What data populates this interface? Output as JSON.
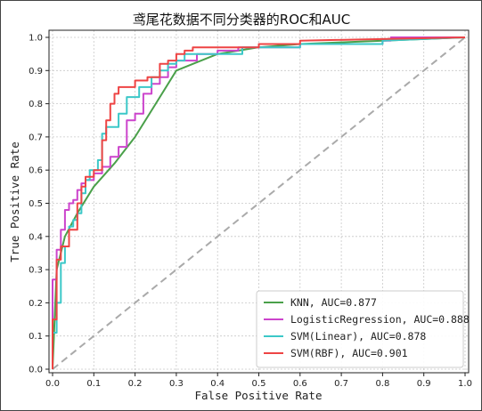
{
  "chart_data": {
    "type": "line",
    "title": "鸢尾花数据不同分类器的ROC和AUC",
    "xlabel": "False Positive Rate",
    "ylabel": "True Positive Rate",
    "xlim": [
      0,
      1
    ],
    "ylim": [
      0,
      1
    ],
    "xticks": [
      "0.0",
      "0.1",
      "0.2",
      "0.3",
      "0.4",
      "0.5",
      "0.6",
      "0.7",
      "0.8",
      "0.9",
      "1.0"
    ],
    "yticks": [
      "0.0",
      "0.1",
      "0.2",
      "0.3",
      "0.4",
      "0.5",
      "0.6",
      "0.7",
      "0.8",
      "0.9",
      "1.0"
    ],
    "grid": true,
    "legend_position": "lower-right",
    "diagonal": {
      "x": [
        0,
        1
      ],
      "y": [
        0,
        1
      ],
      "color": "#aaaaaa",
      "style": "dashed"
    },
    "series": [
      {
        "name": "KNN, AUC=0.877",
        "color": "#4aa04a",
        "x": [
          0,
          0.01,
          0.03,
          0.06,
          0.1,
          0.15,
          0.2,
          0.25,
          0.3,
          0.4,
          0.5,
          0.6,
          0.7,
          0.8,
          0.9,
          1.0
        ],
        "y": [
          0,
          0.3,
          0.4,
          0.47,
          0.55,
          0.62,
          0.7,
          0.8,
          0.9,
          0.95,
          0.97,
          0.98,
          0.985,
          0.99,
          0.995,
          1.0
        ]
      },
      {
        "name": "LogisticRegression, AUC=0.888",
        "color": "#cc44cc",
        "x": [
          0,
          0,
          0.01,
          0.01,
          0.02,
          0.02,
          0.03,
          0.03,
          0.04,
          0.04,
          0.05,
          0.05,
          0.06,
          0.06,
          0.07,
          0.07,
          0.08,
          0.08,
          0.1,
          0.1,
          0.12,
          0.12,
          0.14,
          0.14,
          0.16,
          0.16,
          0.18,
          0.18,
          0.2,
          0.2,
          0.22,
          0.22,
          0.24,
          0.24,
          0.26,
          0.26,
          0.28,
          0.28,
          0.3,
          0.3,
          0.35,
          0.35,
          0.4,
          0.4,
          0.45,
          0.45,
          0.6,
          0.6,
          0.8,
          0.8,
          0.82,
          0.82,
          1.0
        ],
        "y": [
          0,
          0.27,
          0.27,
          0.36,
          0.36,
          0.42,
          0.42,
          0.48,
          0.48,
          0.5,
          0.5,
          0.51,
          0.51,
          0.54,
          0.54,
          0.56,
          0.56,
          0.57,
          0.57,
          0.59,
          0.59,
          0.61,
          0.61,
          0.64,
          0.64,
          0.67,
          0.67,
          0.75,
          0.75,
          0.77,
          0.77,
          0.83,
          0.83,
          0.86,
          0.86,
          0.88,
          0.88,
          0.91,
          0.91,
          0.93,
          0.93,
          0.95,
          0.95,
          0.96,
          0.96,
          0.97,
          0.97,
          0.98,
          0.98,
          0.99,
          0.99,
          1.0,
          1.0
        ]
      },
      {
        "name": "SVM(Linear), AUC=0.878",
        "color": "#3cc8c8",
        "x": [
          0,
          0,
          0.01,
          0.01,
          0.02,
          0.02,
          0.03,
          0.03,
          0.04,
          0.04,
          0.05,
          0.05,
          0.06,
          0.06,
          0.07,
          0.07,
          0.08,
          0.08,
          0.09,
          0.09,
          0.11,
          0.11,
          0.12,
          0.12,
          0.13,
          0.13,
          0.16,
          0.16,
          0.18,
          0.18,
          0.21,
          0.21,
          0.24,
          0.24,
          0.26,
          0.26,
          0.28,
          0.28,
          0.3,
          0.3,
          0.32,
          0.32,
          0.46,
          0.46,
          0.6,
          0.6,
          0.8,
          0.8,
          1.0
        ],
        "y": [
          0,
          0.11,
          0.11,
          0.2,
          0.2,
          0.32,
          0.32,
          0.37,
          0.37,
          0.43,
          0.43,
          0.45,
          0.45,
          0.47,
          0.47,
          0.53,
          0.53,
          0.57,
          0.57,
          0.6,
          0.6,
          0.63,
          0.63,
          0.71,
          0.71,
          0.73,
          0.73,
          0.77,
          0.77,
          0.82,
          0.82,
          0.85,
          0.85,
          0.88,
          0.88,
          0.9,
          0.9,
          0.92,
          0.92,
          0.93,
          0.93,
          0.95,
          0.95,
          0.97,
          0.97,
          0.98,
          0.98,
          0.99,
          1.0
        ]
      },
      {
        "name": "SVM(RBF), AUC=0.901",
        "color": "#ee4444",
        "x": [
          0,
          0,
          0.01,
          0.01,
          0.02,
          0.02,
          0.04,
          0.04,
          0.06,
          0.06,
          0.07,
          0.07,
          0.08,
          0.08,
          0.1,
          0.1,
          0.12,
          0.12,
          0.13,
          0.13,
          0.14,
          0.14,
          0.15,
          0.15,
          0.16,
          0.16,
          0.2,
          0.2,
          0.23,
          0.23,
          0.26,
          0.26,
          0.28,
          0.28,
          0.3,
          0.3,
          0.32,
          0.32,
          0.34,
          0.34,
          0.5,
          0.5,
          0.6,
          0.6,
          1.0
        ],
        "y": [
          0,
          0.15,
          0.15,
          0.33,
          0.33,
          0.37,
          0.37,
          0.42,
          0.42,
          0.5,
          0.5,
          0.55,
          0.55,
          0.58,
          0.58,
          0.6,
          0.6,
          0.69,
          0.69,
          0.75,
          0.75,
          0.8,
          0.8,
          0.83,
          0.83,
          0.85,
          0.85,
          0.87,
          0.87,
          0.88,
          0.88,
          0.92,
          0.92,
          0.93,
          0.93,
          0.95,
          0.95,
          0.96,
          0.96,
          0.97,
          0.97,
          0.98,
          0.98,
          0.99,
          1.0
        ]
      }
    ]
  }
}
